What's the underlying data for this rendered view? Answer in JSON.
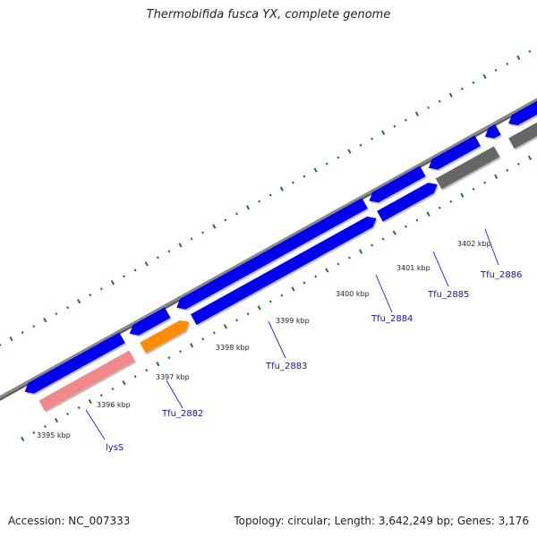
{
  "title": "Thermobifida fusca YX, complete genome",
  "footer": {
    "accession": "Accession: NC_007333",
    "summary": "Topology: circular; Length: 3,642,249 bp; Genes: 3,176"
  },
  "colors": {
    "backbone": "#8c8c8c",
    "forward_cds": "#0000ee",
    "reverse_cds": "#0000ee",
    "rna_gene": "#f08a8a",
    "highlight_gene": "#ff8c00",
    "pseudo_gene": "#666666",
    "tick": "#1f7a1f",
    "label": "#1515a8"
  },
  "ruler_labels": [
    "3395 kbp",
    "3396 kbp",
    "3397 kbp",
    "3398 kbp",
    "3399 kbp",
    "3400 kbp",
    "3401 kbp",
    "3402 kbp"
  ],
  "gene_labels": [
    "lysS",
    "Tfu_2882",
    "Tfu_2883",
    "Tfu_2884",
    "Tfu_2885",
    "Tfu_2886"
  ]
}
